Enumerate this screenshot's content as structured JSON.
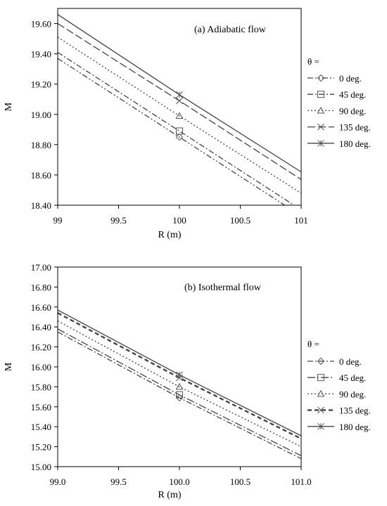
{
  "chart_data": [
    {
      "type": "line",
      "title": "(a) Adiabatic flow",
      "xlabel": "R  (m)",
      "ylabel": "M",
      "xlim": [
        99,
        101
      ],
      "ylim": [
        18.4,
        19.7
      ],
      "x_ticks": [
        "99",
        "99.5",
        "100",
        "100.5",
        "101"
      ],
      "y_ticks": [
        "18.40",
        "18.60",
        "18.80",
        "19.00",
        "19.20",
        "19.40",
        "19.60"
      ],
      "legend_title": "θ =",
      "legend_position": "right",
      "series": [
        {
          "name": "0 deg.",
          "marker": "diamond",
          "dash": "dashdotdot",
          "x": [
            99,
            100,
            101
          ],
          "y": [
            19.37,
            18.85,
            18.33
          ],
          "color": "#555555"
        },
        {
          "name": "45 deg.",
          "marker": "square",
          "dash": "dashdot",
          "x": [
            99,
            100,
            101
          ],
          "y": [
            19.41,
            18.89,
            18.37
          ],
          "color": "#555555"
        },
        {
          "name": "90 deg.",
          "marker": "triangle",
          "dash": "dotted",
          "x": [
            99,
            100,
            101
          ],
          "y": [
            19.51,
            18.99,
            18.48
          ],
          "color": "#555555"
        },
        {
          "name": "135 deg.",
          "marker": "x",
          "dash": "longdash",
          "x": [
            99,
            100,
            101
          ],
          "y": [
            19.6,
            19.09,
            18.57
          ],
          "color": "#555555"
        },
        {
          "name": "180 deg.",
          "marker": "star",
          "dash": "solid",
          "x": [
            99,
            100,
            101
          ],
          "y": [
            19.66,
            19.13,
            18.62
          ],
          "color": "#555555"
        }
      ]
    },
    {
      "type": "line",
      "title": "(b) Isothermal flow",
      "xlabel": "R (m)",
      "ylabel": "M",
      "xlim": [
        99,
        101
      ],
      "ylim": [
        15.0,
        17.0
      ],
      "x_ticks": [
        "99.0",
        "99.5",
        "100.0",
        "100.5",
        "101.0"
      ],
      "y_ticks": [
        "15.00",
        "15.20",
        "15.40",
        "15.60",
        "15.80",
        "16.00",
        "16.20",
        "16.40",
        "16.60",
        "16.80",
        "17.00"
      ],
      "legend_title": "θ =",
      "legend_position": "right",
      "series": [
        {
          "name": "0 deg.",
          "marker": "diamond",
          "dash": "dashdot",
          "x": [
            99,
            100,
            101
          ],
          "y": [
            16.35,
            15.69,
            15.08
          ],
          "color": "#555555"
        },
        {
          "name": "45 deg.",
          "marker": "square",
          "dash": "longdashdot",
          "x": [
            99,
            100,
            101
          ],
          "y": [
            16.38,
            15.72,
            15.11
          ],
          "color": "#555555"
        },
        {
          "name": "90 deg.",
          "marker": "triangle",
          "dash": "dotted",
          "x": [
            99,
            100,
            101
          ],
          "y": [
            16.46,
            15.8,
            15.2
          ],
          "color": "#555555"
        },
        {
          "name": "135 deg.",
          "marker": "x",
          "dash": "thickdash",
          "x": [
            99,
            100,
            101
          ],
          "y": [
            16.54,
            15.89,
            15.28
          ],
          "color": "#555555"
        },
        {
          "name": "180 deg.",
          "marker": "star",
          "dash": "solid",
          "x": [
            99,
            100,
            101
          ],
          "y": [
            16.57,
            15.92,
            15.31
          ],
          "color": "#555555"
        }
      ]
    }
  ]
}
